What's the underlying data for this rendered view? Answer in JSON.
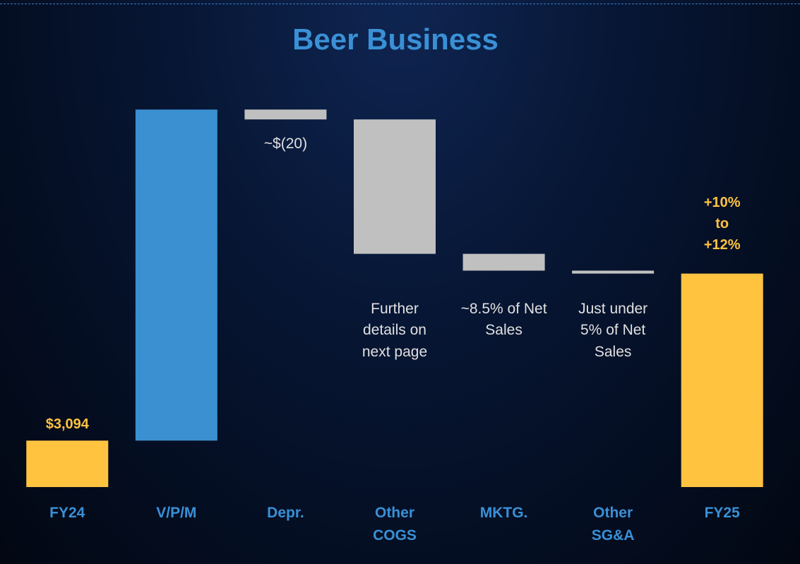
{
  "chart_data": {
    "type": "waterfall",
    "title": "Beer Business",
    "categories": [
      "FY24",
      "V/P/M",
      "Depr.",
      "Other COGS",
      "MKTG.",
      "Other SG&A",
      "FY25"
    ],
    "values": [
      3094,
      670,
      -20,
      -272,
      -34,
      -6,
      3432
    ],
    "totals": [
      true,
      false,
      false,
      false,
      false,
      false,
      true
    ],
    "value_labels": [
      "$3,094",
      null,
      "~$(20)",
      null,
      null,
      null,
      null
    ],
    "notes": [
      null,
      null,
      null,
      "Further details on next page",
      "~8.5% of Net Sales",
      "Just under 5% of Net Sales",
      "+10% to +12%"
    ],
    "colors": {
      "total": "#ffc340",
      "increase": "#3a90d0",
      "decrease": "#c0c0c0"
    },
    "ylim": [
      3000,
      3770
    ]
  }
}
